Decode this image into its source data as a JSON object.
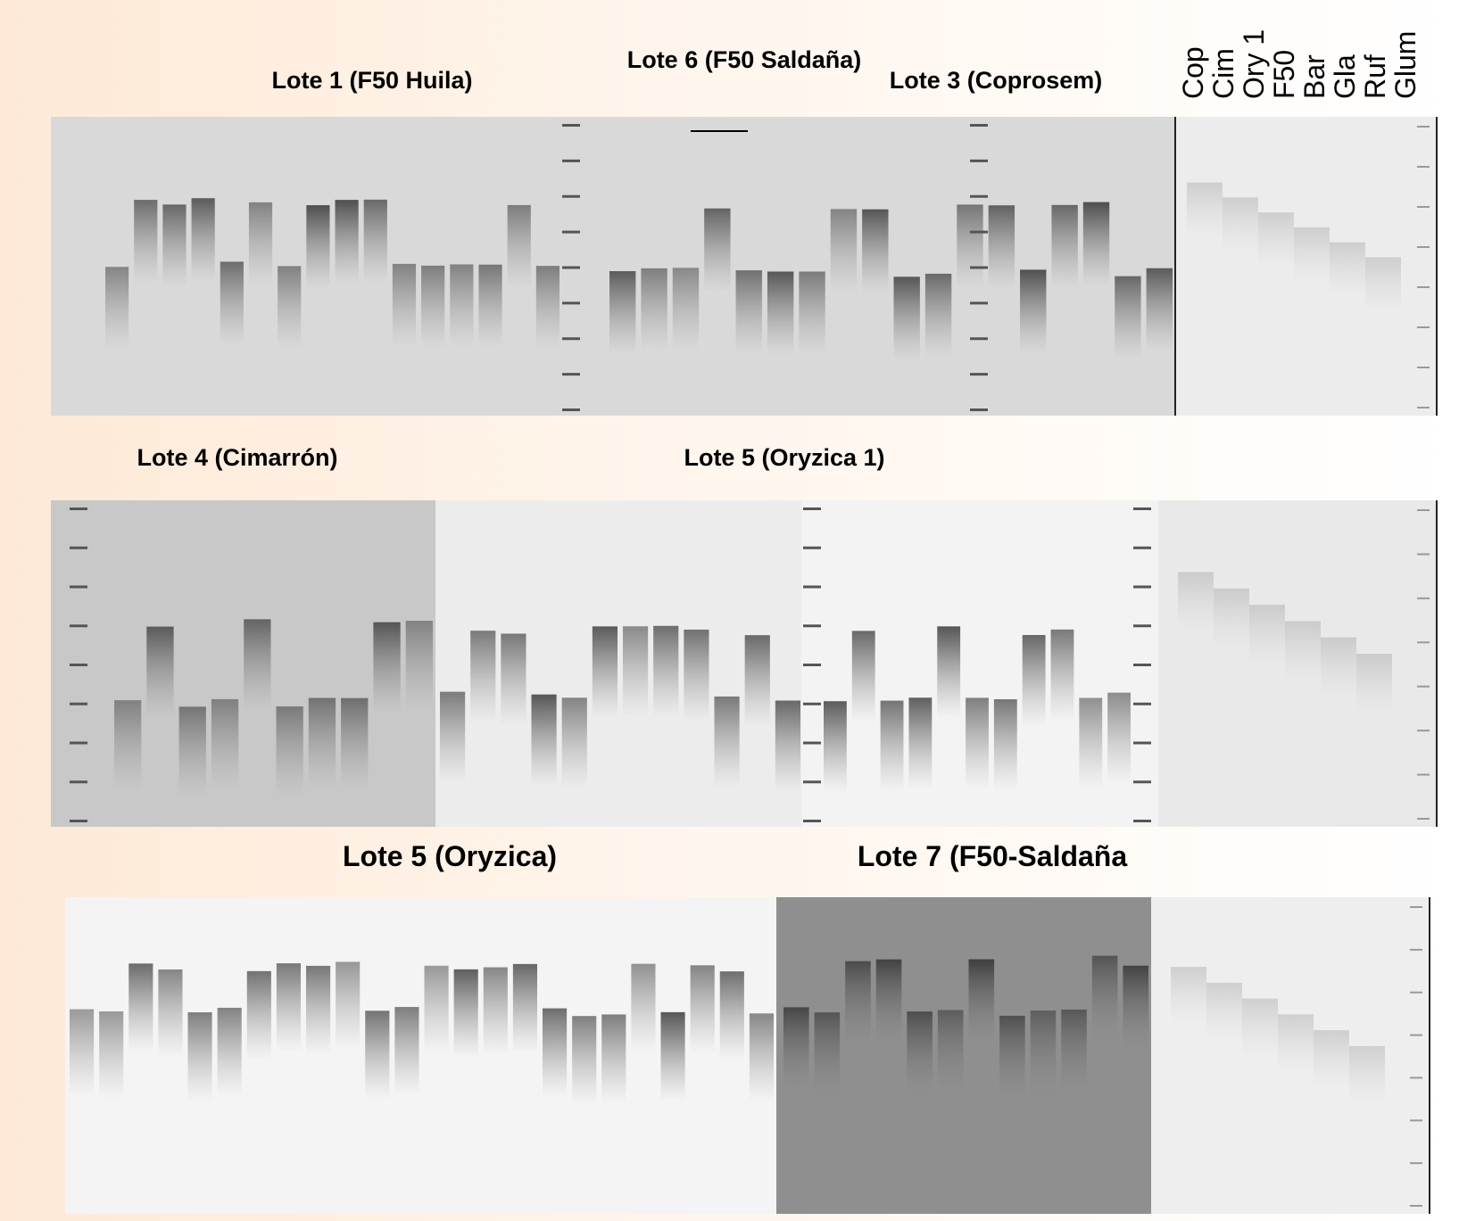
{
  "panel_1": {
    "titles": [
      "Lote 1  (F50 Huila)",
      "Lote 6 (F50 Saldaña)",
      "Lote 3 (Coprosem)"
    ],
    "lane_labels": [
      "Cop",
      "Cim",
      "Ory 1",
      "F50",
      "Bar",
      "Gla",
      "Ruf",
      "Glum"
    ]
  },
  "panel_2": {
    "titles": [
      "Lote 4 (Cimarrón)",
      "Lote 5 (Oryzica 1)"
    ]
  },
  "panel_3": {
    "titles": [
      "Lote 5 (Oryzica)",
      "Lote 7 (F50-Saldaña"
    ]
  }
}
